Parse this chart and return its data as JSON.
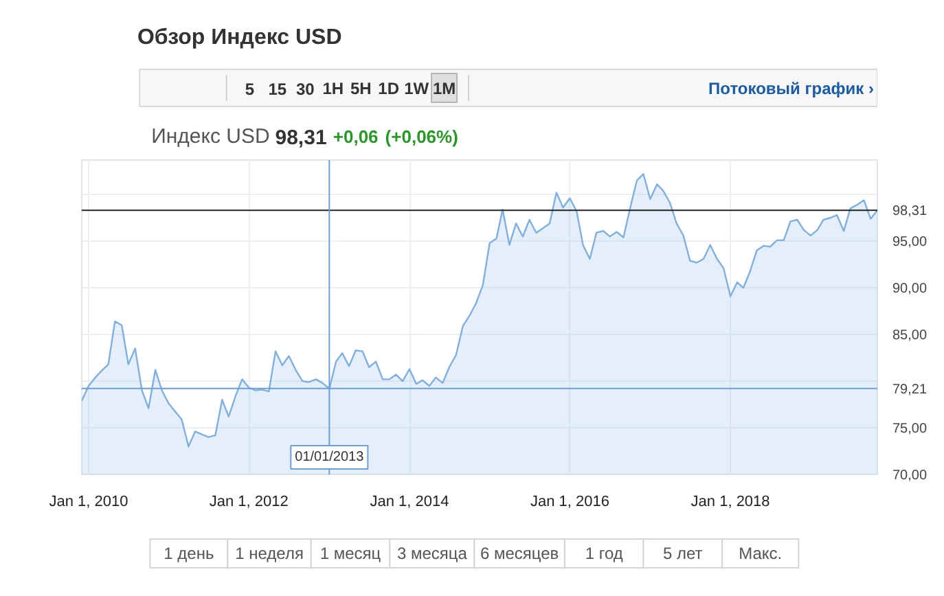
{
  "chart_data": {
    "type": "area",
    "title": "Обзор Индекс USD",
    "subtitle": "Индекс USD",
    "annotations": [
      "5",
      "15",
      "30",
      "1H",
      "5H",
      "1D",
      "1W",
      "1M",
      "Потоковый график ›",
      "98,31",
      "+0,06",
      "(+0,06%)",
      "1 день",
      "1 неделя",
      "1 месяц",
      "3 месяца",
      "6 месяцев",
      "1 год",
      "5 лет",
      "Макс."
    ],
    "x": [
      "2009-12",
      "2010-01",
      "2010-02",
      "2010-03",
      "2010-04",
      "2010-05",
      "2010-06",
      "2010-07",
      "2010-08",
      "2010-09",
      "2010-10",
      "2010-11",
      "2010-12",
      "2011-01",
      "2011-02",
      "2011-03",
      "2011-04",
      "2011-05",
      "2011-06",
      "2011-07",
      "2011-08",
      "2011-09",
      "2011-10",
      "2011-11",
      "2011-12",
      "2012-01",
      "2012-02",
      "2012-03",
      "2012-04",
      "2012-05",
      "2012-06",
      "2012-07",
      "2012-08",
      "2012-09",
      "2012-10",
      "2012-11",
      "2012-12",
      "2013-01",
      "2013-02",
      "2013-03",
      "2013-04",
      "2013-05",
      "2013-06",
      "2013-07",
      "2013-08",
      "2013-09",
      "2013-10",
      "2013-11",
      "2013-12",
      "2014-01",
      "2014-02",
      "2014-03",
      "2014-04",
      "2014-05",
      "2014-06",
      "2014-07",
      "2014-08",
      "2014-09",
      "2014-10",
      "2014-11",
      "2014-12",
      "2015-01",
      "2015-02",
      "2015-03",
      "2015-04",
      "2015-05",
      "2015-06",
      "2015-07",
      "2015-08",
      "2015-09",
      "2015-10",
      "2015-11",
      "2015-12",
      "2016-01",
      "2016-02",
      "2016-03",
      "2016-04",
      "2016-05",
      "2016-06",
      "2016-07",
      "2016-08",
      "2016-09",
      "2016-10",
      "2016-11",
      "2016-12",
      "2017-01",
      "2017-02",
      "2017-03",
      "2017-04",
      "2017-05",
      "2017-06",
      "2017-07",
      "2017-08",
      "2017-09",
      "2017-10",
      "2017-11",
      "2017-12",
      "2018-01",
      "2018-02",
      "2018-03",
      "2018-04",
      "2018-05",
      "2018-06",
      "2018-07",
      "2018-08",
      "2018-09",
      "2018-10",
      "2018-11",
      "2018-12",
      "2019-01",
      "2019-02",
      "2019-03",
      "2019-04",
      "2019-05",
      "2019-06",
      "2019-07",
      "2019-08",
      "2019-09",
      "2019-10",
      "2019-11"
    ],
    "values": [
      77.9,
      79.5,
      80.4,
      81.1,
      81.8,
      86.4,
      86.0,
      81.8,
      83.5,
      79.0,
      77.1,
      81.2,
      79.0,
      77.6,
      76.7,
      75.9,
      73.0,
      74.6,
      74.3,
      74.0,
      74.2,
      78.0,
      76.2,
      78.4,
      80.2,
      79.3,
      79.0,
      79.1,
      78.9,
      83.2,
      81.7,
      82.7,
      81.2,
      80.0,
      79.9,
      80.2,
      79.8,
      79.2,
      82.1,
      83.0,
      81.6,
      83.3,
      83.2,
      81.5,
      82.1,
      80.2,
      80.2,
      80.7,
      80.0,
      81.3,
      79.7,
      80.1,
      79.5,
      80.4,
      79.8,
      81.5,
      82.8,
      85.9,
      87.0,
      88.4,
      90.3,
      94.8,
      95.3,
      98.4,
      94.6,
      96.9,
      95.5,
      97.3,
      95.9,
      96.4,
      96.9,
      100.2,
      98.6,
      99.6,
      98.2,
      94.6,
      93.1,
      95.9,
      96.1,
      95.5,
      96.0,
      95.4,
      98.5,
      101.5,
      102.2,
      99.5,
      101.1,
      100.4,
      99.1,
      96.9,
      95.6,
      92.9,
      92.7,
      93.1,
      94.6,
      93.1,
      92.1,
      89.1,
      90.6,
      90.0,
      91.8,
      94.0,
      94.5,
      94.4,
      95.1,
      95.1,
      97.1,
      97.3,
      96.2,
      95.6,
      96.2,
      97.3,
      97.5,
      97.8,
      96.1,
      98.5,
      98.9,
      99.4,
      97.4,
      98.3
    ],
    "color": "#7eb0e2",
    "xlim": [
      "2009-12-01",
      "2019-11-01"
    ],
    "xticks": [
      {
        "value": "2010-01-01",
        "label": "Jan 1, 2010"
      },
      {
        "value": "2012-01-01",
        "label": "Jan 1, 2012"
      },
      {
        "value": "2014-01-01",
        "label": "Jan 1, 2014"
      },
      {
        "value": "2016-01-01",
        "label": "Jan 1, 2016"
      },
      {
        "value": "2018-01-01",
        "label": "Jan 1, 2018"
      }
    ],
    "ylim": [
      70,
      103.7
    ],
    "yticks": [
      {
        "value": 70,
        "label": "70,00"
      },
      {
        "value": 75,
        "label": "75,00"
      },
      {
        "value": 80,
        "label": null
      },
      {
        "value": 85,
        "label": "85,00"
      },
      {
        "value": 90,
        "label": "90,00"
      },
      {
        "value": 95,
        "label": "95,00"
      },
      {
        "value": 100,
        "label": null
      }
    ],
    "ref_lines": [
      {
        "axis": "y",
        "value": 98.31,
        "label": "98,31",
        "color": "#222222"
      },
      {
        "axis": "y",
        "value": 79.21,
        "label": "79,21",
        "color": "#6b9fd9"
      },
      {
        "axis": "x",
        "value": "2013-01-01",
        "label": "01/01/2013",
        "color": "#6b9fd9"
      }
    ],
    "grid": true
  }
}
